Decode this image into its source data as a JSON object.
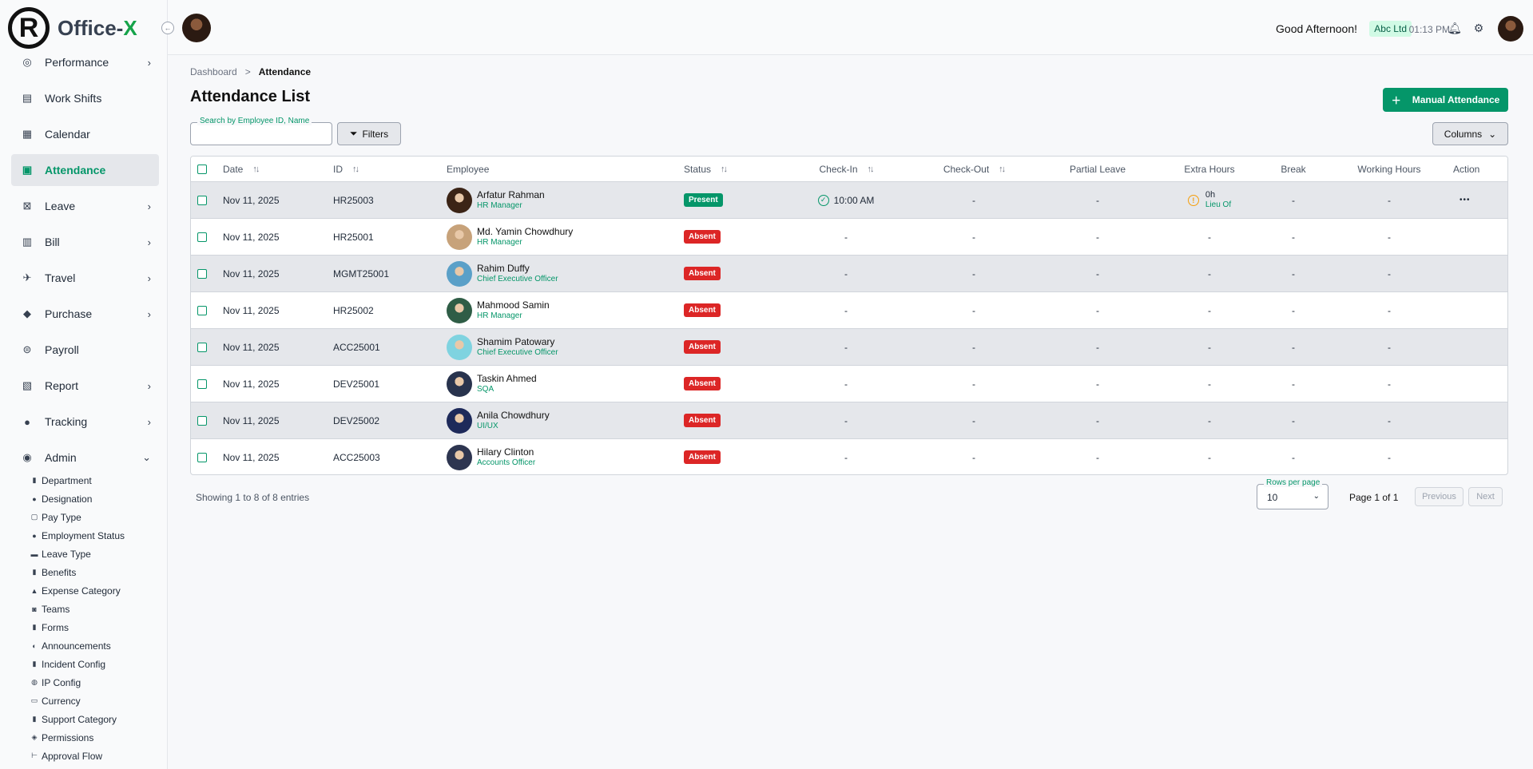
{
  "app": {
    "name_main": "Office-",
    "name_accent": "X"
  },
  "sidebar": {
    "items": [
      {
        "label": "Performance",
        "icon": "gauge-icon",
        "glyph": "◎",
        "chevron": true
      },
      {
        "label": "Work Shifts",
        "icon": "shift-icon",
        "glyph": "▤",
        "chevron": false
      },
      {
        "label": "Calendar",
        "icon": "calendar-icon",
        "glyph": "▦",
        "chevron": false
      },
      {
        "label": "Attendance",
        "icon": "attendance-icon",
        "glyph": "▣",
        "chevron": false,
        "active": true
      },
      {
        "label": "Leave",
        "icon": "leave-icon",
        "glyph": "⊠",
        "chevron": true
      },
      {
        "label": "Bill",
        "icon": "bill-icon",
        "glyph": "▥",
        "chevron": true
      },
      {
        "label": "Travel",
        "icon": "plane-icon",
        "glyph": "✈",
        "chevron": true
      },
      {
        "label": "Purchase",
        "icon": "tag-icon",
        "glyph": "◆",
        "chevron": true
      },
      {
        "label": "Payroll",
        "icon": "payroll-icon",
        "glyph": "⊜",
        "chevron": false
      },
      {
        "label": "Report",
        "icon": "report-icon",
        "glyph": "▧",
        "chevron": true
      },
      {
        "label": "Tracking",
        "icon": "pin-icon",
        "glyph": "●",
        "chevron": true
      },
      {
        "label": "Admin",
        "icon": "admin-icon",
        "glyph": "◉",
        "chevron": true,
        "expanded": true
      }
    ],
    "admin_sub": [
      {
        "label": "Department",
        "icon": "department-icon",
        "glyph": "▮"
      },
      {
        "label": "Designation",
        "icon": "designation-icon",
        "glyph": "●"
      },
      {
        "label": "Pay Type",
        "icon": "pay-type-icon",
        "glyph": "▢"
      },
      {
        "label": "Employment Status",
        "icon": "employment-status-icon",
        "glyph": "●"
      },
      {
        "label": "Leave Type",
        "icon": "leave-type-icon",
        "glyph": "▬"
      },
      {
        "label": "Benefits",
        "icon": "benefits-icon",
        "glyph": "▮"
      },
      {
        "label": "Expense Category",
        "icon": "expense-category-icon",
        "glyph": "▲"
      },
      {
        "label": "Teams",
        "icon": "teams-icon",
        "glyph": "◙"
      },
      {
        "label": "Forms",
        "icon": "forms-icon",
        "glyph": "▮"
      },
      {
        "label": "Announcements",
        "icon": "announcement-icon",
        "glyph": "◐"
      },
      {
        "label": "Incident Config",
        "icon": "incident-config-icon",
        "glyph": "▮"
      },
      {
        "label": "IP Config",
        "icon": "globe-icon",
        "glyph": "◍"
      },
      {
        "label": "Currency",
        "icon": "currency-icon",
        "glyph": "▭"
      },
      {
        "label": "Support Category",
        "icon": "support-category-icon",
        "glyph": "▮"
      },
      {
        "label": "Permissions",
        "icon": "shield-icon",
        "glyph": "◈"
      },
      {
        "label": "Approval Flow",
        "icon": "flow-icon",
        "glyph": "⊢"
      }
    ]
  },
  "header": {
    "greeting": "Good Afternoon!",
    "company": "Abc Ltd",
    "time": "01:13 PM"
  },
  "breadcrumb": {
    "root": "Dashboard",
    "separator": ">",
    "current": "Attendance"
  },
  "page": {
    "title": "Attendance List",
    "primary_button": "Manual Attendance",
    "search_label": "Search by Employee ID, Name",
    "search_value": "",
    "filters_label": "Filters",
    "columns_label": "Columns"
  },
  "table": {
    "columns": [
      "Date",
      "ID",
      "Employee",
      "Status",
      "Check-In",
      "Check-Out",
      "Partial Leave",
      "Extra Hours",
      "Break",
      "Working Hours",
      "Action"
    ],
    "rows": [
      {
        "date": "Nov 11, 2025",
        "id": "HR25003",
        "name": "Arfatur Rahman",
        "title": "HR Manager",
        "status": "Present",
        "check_in": "10:00 AM",
        "check_out": "-",
        "partial_leave": "-",
        "extra_hours": "0h",
        "extra_note": "Lieu Of",
        "break": "-",
        "working_hours": "-",
        "action": "•••",
        "avatar_color": "#3b2416"
      },
      {
        "date": "Nov 11, 2025",
        "id": "HR25001",
        "name": "Md. Yamin Chowdhury",
        "title": "HR Manager",
        "status": "Absent",
        "check_in": "-",
        "check_out": "-",
        "partial_leave": "-",
        "extra_hours": "-",
        "extra_note": "",
        "break": "-",
        "working_hours": "-",
        "action": "",
        "avatar_color": "#c7a27a"
      },
      {
        "date": "Nov 11, 2025",
        "id": "MGMT25001",
        "name": "Rahim Duffy",
        "title": "Chief Executive Officer",
        "status": "Absent",
        "check_in": "-",
        "check_out": "-",
        "partial_leave": "-",
        "extra_hours": "-",
        "extra_note": "",
        "break": "-",
        "working_hours": "-",
        "action": "",
        "avatar_color": "#5aa0c8"
      },
      {
        "date": "Nov 11, 2025",
        "id": "HR25002",
        "name": "Mahmood Samin",
        "title": "HR Manager",
        "status": "Absent",
        "check_in": "-",
        "check_out": "-",
        "partial_leave": "-",
        "extra_hours": "-",
        "extra_note": "",
        "break": "-",
        "working_hours": "-",
        "action": "",
        "avatar_color": "#2f5d46"
      },
      {
        "date": "Nov 11, 2025",
        "id": "ACC25001",
        "name": "Shamim Patowary",
        "title": "Chief Executive Officer",
        "status": "Absent",
        "check_in": "-",
        "check_out": "-",
        "partial_leave": "-",
        "extra_hours": "-",
        "extra_note": "",
        "break": "-",
        "working_hours": "-",
        "action": "",
        "avatar_color": "#7fd3e0"
      },
      {
        "date": "Nov 11, 2025",
        "id": "DEV25001",
        "name": "Taskin Ahmed",
        "title": "SQA",
        "status": "Absent",
        "check_in": "-",
        "check_out": "-",
        "partial_leave": "-",
        "extra_hours": "-",
        "extra_note": "",
        "break": "-",
        "working_hours": "-",
        "action": "",
        "avatar_color": "#28334d"
      },
      {
        "date": "Nov 11, 2025",
        "id": "DEV25002",
        "name": "Anila Chowdhury",
        "title": "UI/UX",
        "status": "Absent",
        "check_in": "-",
        "check_out": "-",
        "partial_leave": "-",
        "extra_hours": "-",
        "extra_note": "",
        "break": "-",
        "working_hours": "-",
        "action": "",
        "avatar_color": "#1e2a5a"
      },
      {
        "date": "Nov 11, 2025",
        "id": "ACC25003",
        "name": "Hilary Clinton",
        "title": "Accounts Officer",
        "status": "Absent",
        "check_in": "-",
        "check_out": "-",
        "partial_leave": "-",
        "extra_hours": "-",
        "extra_note": "",
        "break": "-",
        "working_hours": "-",
        "action": "",
        "avatar_color": "#2d3550"
      }
    ]
  },
  "footer": {
    "entries": "Showing 1 to 8 of 8 entries",
    "rows_per_page_label": "Rows per page",
    "rows_per_page_value": "10",
    "page_info": "Page 1 of 1",
    "previous": "Previous",
    "next": "Next"
  },
  "colors": {
    "accent": "#059669",
    "present": "#059669",
    "absent": "#dc2626",
    "row_alt": "#e5e7eb"
  }
}
